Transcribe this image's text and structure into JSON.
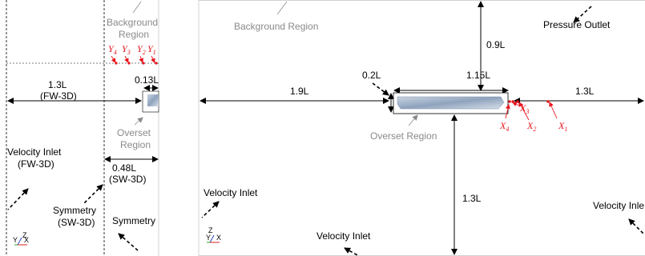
{
  "left_panel": {
    "background_region": [
      "Background",
      "Region"
    ],
    "probe_labels": [
      "Y4",
      "Y3",
      "Y2",
      "Y1"
    ],
    "dim_13L": [
      "1.3L",
      "(FW-3D)"
    ],
    "dim_013L": "0.13L",
    "overset_region": [
      "Overset",
      "Region"
    ],
    "velocity_inlet": [
      "Velocity Inlet",
      "(FW-3D)"
    ],
    "dim_048L": [
      "0.48L",
      "(SW-3D)"
    ],
    "symmetry_left": [
      "Symmetry",
      "(SW-3D)"
    ],
    "symmetry_right": "Symmetry",
    "axis": {
      "z": "Z",
      "y": "Y",
      "x": "X"
    }
  },
  "right_panel": {
    "background_region": "Background Region",
    "pressure_outlet": "Pressure Outlet",
    "dim_09L": "0.9L",
    "dim_02L": "0.2L",
    "dim_115L": "1.15L",
    "dim_19L": "1.9L",
    "dim_13L_right": "1.3L",
    "dim_13L_bottom": "1.3L",
    "overset_region": "Overset Region",
    "velocity_inlet_left": "Velocity Inlet",
    "velocity_inlet_bottom": "Velocity Inlet",
    "velocity_inlet_right": "Velocity Inle",
    "probe_labels": [
      "X1",
      "X2",
      "X3",
      "X4"
    ],
    "axis": {
      "z": "Z",
      "y": "Y",
      "x": "X"
    }
  },
  "colors": {
    "probe": "#e8141c",
    "annotation": "#8a8a8a",
    "hull": "#a9b8cc"
  }
}
